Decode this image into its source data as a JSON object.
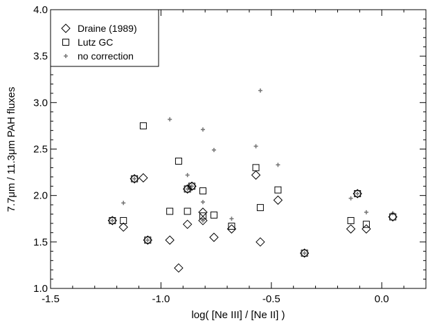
{
  "chart_data": {
    "type": "scatter",
    "title": "",
    "xlabel": "log( [Ne III] / [Ne II] )",
    "ylabel": "7.7μm / 11.3μm PAH fluxes",
    "xlim": [
      -1.5,
      0.2
    ],
    "ylim": [
      1.0,
      4.0
    ],
    "x_ticks": [
      -1.5,
      -1.0,
      -0.5,
      0.0
    ],
    "x_tick_labels": [
      "-1.5",
      "-1.0",
      "-0.5",
      "0.0"
    ],
    "y_ticks": [
      1.0,
      1.5,
      2.0,
      2.5,
      3.0,
      3.5,
      4.0
    ],
    "y_tick_labels": [
      "1.0",
      "1.5",
      "2.0",
      "2.5",
      "3.0",
      "3.5",
      "4.0"
    ],
    "grid": false,
    "legend_position": "top-left",
    "series": [
      {
        "name": "Draine (1989)",
        "marker": "diamond",
        "color": "#000000",
        "points": [
          [
            -1.22,
            1.73
          ],
          [
            -1.17,
            1.66
          ],
          [
            -1.12,
            2.18
          ],
          [
            -1.08,
            2.19
          ],
          [
            -1.06,
            1.52
          ],
          [
            -0.96,
            1.52
          ],
          [
            -0.92,
            1.22
          ],
          [
            -0.88,
            1.69
          ],
          [
            -0.88,
            2.07
          ],
          [
            -0.86,
            2.1
          ],
          [
            -0.81,
            1.82
          ],
          [
            -0.81,
            1.73
          ],
          [
            -0.76,
            1.55
          ],
          [
            -0.68,
            1.64
          ],
          [
            -0.57,
            2.22
          ],
          [
            -0.55,
            1.5
          ],
          [
            -0.47,
            1.95
          ],
          [
            -0.35,
            1.38
          ],
          [
            -0.14,
            1.64
          ],
          [
            -0.11,
            2.02
          ],
          [
            -0.07,
            1.64
          ],
          [
            0.05,
            1.77
          ]
        ]
      },
      {
        "name": "Lutz GC",
        "marker": "square",
        "color": "#000000",
        "points": [
          [
            -1.22,
            1.73
          ],
          [
            -1.17,
            1.73
          ],
          [
            -1.12,
            2.18
          ],
          [
            -1.08,
            2.75
          ],
          [
            -1.06,
            1.52
          ],
          [
            -0.96,
            1.83
          ],
          [
            -0.92,
            2.37
          ],
          [
            -0.88,
            1.83
          ],
          [
            -0.88,
            2.07
          ],
          [
            -0.86,
            2.1
          ],
          [
            -0.81,
            2.05
          ],
          [
            -0.81,
            1.78
          ],
          [
            -0.76,
            1.79
          ],
          [
            -0.68,
            1.67
          ],
          [
            -0.57,
            2.3
          ],
          [
            -0.55,
            1.87
          ],
          [
            -0.47,
            2.06
          ],
          [
            -0.35,
            1.38
          ],
          [
            -0.14,
            1.73
          ],
          [
            -0.11,
            2.02
          ],
          [
            -0.07,
            1.69
          ],
          [
            0.05,
            1.77
          ]
        ]
      },
      {
        "name": "no correction",
        "marker": "plus",
        "color": "#777777",
        "points": [
          [
            -1.22,
            1.73
          ],
          [
            -1.17,
            1.92
          ],
          [
            -1.12,
            2.18
          ],
          [
            -1.06,
            1.52
          ],
          [
            -0.96,
            2.82
          ],
          [
            -0.88,
            2.22
          ],
          [
            -0.88,
            2.07
          ],
          [
            -0.86,
            2.1
          ],
          [
            -0.81,
            2.71
          ],
          [
            -0.81,
            1.93
          ],
          [
            -0.81,
            1.73
          ],
          [
            -0.76,
            2.49
          ],
          [
            -0.68,
            1.75
          ],
          [
            -0.57,
            2.53
          ],
          [
            -0.55,
            3.13
          ],
          [
            -0.47,
            2.33
          ],
          [
            -0.35,
            1.38
          ],
          [
            -0.14,
            1.97
          ],
          [
            -0.11,
            2.02
          ],
          [
            -0.07,
            1.82
          ],
          [
            0.05,
            1.81
          ]
        ]
      }
    ]
  }
}
